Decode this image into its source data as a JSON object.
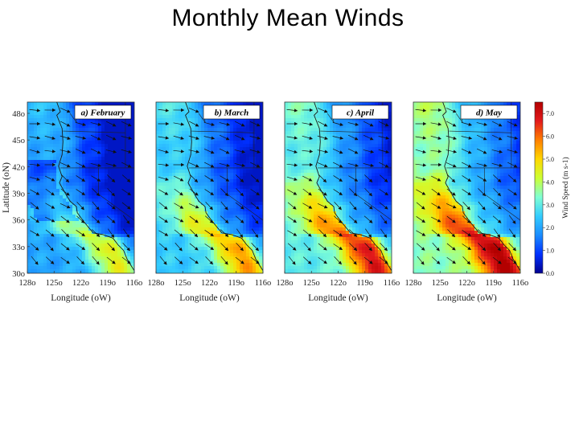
{
  "title": "Monthly Mean Winds",
  "y_axis_title": "Latitude (oN)",
  "x_axis_title": "Longitude (oW)",
  "y_ticks": [
    "48o",
    "45o",
    "42o",
    "39o",
    "36o",
    "33o",
    "30o"
  ],
  "x_ticks": [
    "128o",
    "125o",
    "122o",
    "119o",
    "116o"
  ],
  "colorbar": {
    "label": "Wind Speed (m s-1)",
    "ticks": [
      "7.0",
      "6.0",
      "5.0",
      "4.0",
      "3.0",
      "2.0",
      "1.0",
      "0.0"
    ],
    "range": [
      0,
      7.5
    ],
    "colors": [
      "#00008f",
      "#0030ff",
      "#1a8cff",
      "#33ccff",
      "#7fffd4",
      "#ccff33",
      "#ffd700",
      "#ff7f00",
      "#e31a1c",
      "#b30000"
    ]
  },
  "panels": [
    {
      "label": "a) February",
      "month": "February",
      "coastal_peak_speed": 4.5,
      "offshore_speed": 2.0
    },
    {
      "label": "b) March",
      "month": "March",
      "coastal_peak_speed": 5.5,
      "offshore_speed": 2.5
    },
    {
      "label": "c) April",
      "month": "April",
      "coastal_peak_speed": 6.8,
      "offshore_speed": 3.0
    },
    {
      "label": "d) May",
      "month": "May",
      "coastal_peak_speed": 7.5,
      "offshore_speed": 3.5
    }
  ]
}
